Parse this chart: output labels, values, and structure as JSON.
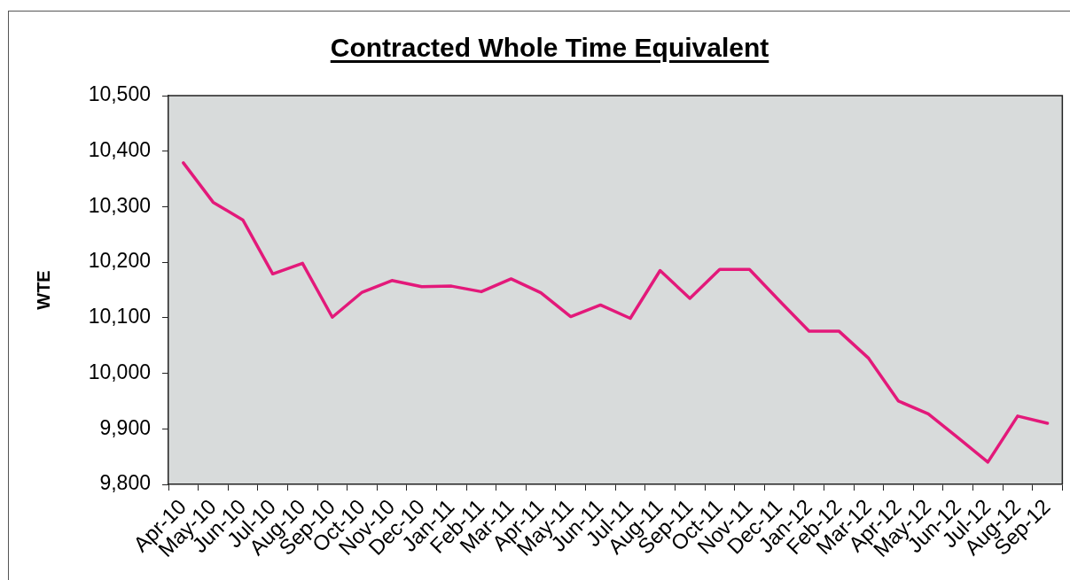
{
  "chart_data": {
    "type": "line",
    "title": "Contracted Whole Time Equivalent",
    "ylabel": "WTE",
    "categories": [
      "Apr-10",
      "May-10",
      "Jun-10",
      "Jul-10",
      "Aug-10",
      "Sep-10",
      "Oct-10",
      "Nov-10",
      "Dec-10",
      "Jan-11",
      "Feb-11",
      "Mar-11",
      "Apr-11",
      "May-11",
      "Jun-11",
      "Jul-11",
      "Aug-11",
      "Sep-11",
      "Oct-11",
      "Nov-11",
      "Dec-11",
      "Jan-12",
      "Feb-12",
      "Mar-12",
      "Apr-12",
      "May-12",
      "Jun-12",
      "Jul-12",
      "Aug-12",
      "Sep-12"
    ],
    "values": [
      10379,
      10308,
      10276,
      10179,
      10198,
      10101,
      10146,
      10167,
      10156,
      10157,
      10147,
      10170,
      10145,
      10102,
      10123,
      10099,
      10185,
      10135,
      10187,
      10187,
      10131,
      10076,
      10076,
      10027,
      9950,
      9927,
      9884,
      9840,
      9923,
      9910
    ],
    "color": "#e3197a",
    "ylim": [
      9800,
      10500
    ],
    "yticks": [
      {
        "value": 9800,
        "label": "9,800"
      },
      {
        "value": 9900,
        "label": "9,900"
      },
      {
        "value": 10000,
        "label": "10,000"
      },
      {
        "value": 10100,
        "label": "10,100"
      },
      {
        "value": 10200,
        "label": "10,200"
      },
      {
        "value": 10300,
        "label": "10,300"
      },
      {
        "value": 10400,
        "label": "10,400"
      },
      {
        "value": 10500,
        "label": "10,500"
      }
    ]
  }
}
